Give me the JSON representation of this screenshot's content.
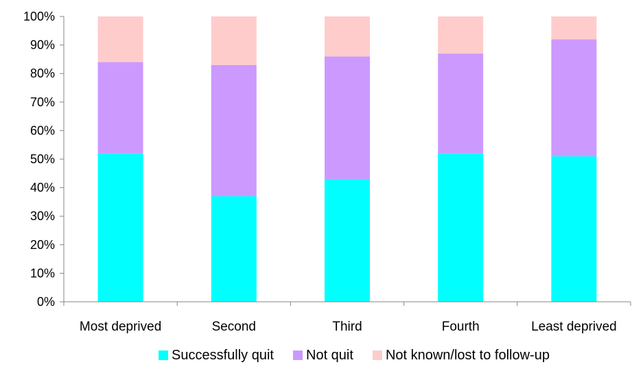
{
  "chart_data": {
    "type": "bar",
    "stacked": true,
    "categories": [
      "Most deprived",
      "Second",
      "Third",
      "Fourth",
      "Least deprived"
    ],
    "series": [
      {
        "name": "Successfully quit",
        "values": [
          52,
          37,
          43,
          52,
          51
        ],
        "color": "#00FFFF"
      },
      {
        "name": "Not quit",
        "values": [
          32,
          46,
          43,
          35,
          41
        ],
        "color": "#CC99FF"
      },
      {
        "name": "Not known/lost to follow-up",
        "values": [
          16,
          17,
          14,
          13,
          8
        ],
        "color": "#FFCCCC"
      }
    ],
    "title": "",
    "xlabel": "",
    "ylabel": "",
    "ylim": [
      0,
      100
    ],
    "yticks": [
      "0%",
      "10%",
      "20%",
      "30%",
      "40%",
      "50%",
      "60%",
      "70%",
      "80%",
      "90%",
      "100%"
    ],
    "grid": false,
    "legend_position": "bottom"
  }
}
